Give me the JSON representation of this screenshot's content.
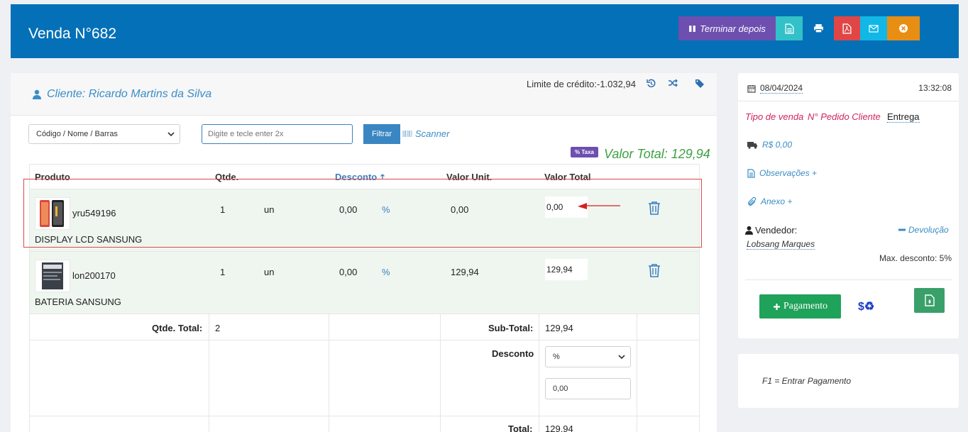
{
  "header": {
    "title": "Venda N°682",
    "buttons": {
      "terminar_label": "Terminar depois"
    }
  },
  "cliente": {
    "label": "Cliente: Ricardo Martins da Silva",
    "limite": "Limite de crédito:-1.032,94"
  },
  "filters": {
    "select_value": "Código / Nome / Barras",
    "search_placeholder": "Digite e tecle enter 2x",
    "filter_label": "Filtrar",
    "scanner_label": "Scanner"
  },
  "summary": {
    "taxa_label": "% Taxa",
    "valor_total": "Valor Total: 129,94"
  },
  "table": {
    "headers": {
      "produto": "Produto",
      "qtde": "Qtde.",
      "desconto": "Desconto",
      "valor_unit": "Valor Unit.",
      "valor_total": "Valor Total"
    },
    "rows": [
      {
        "code": "yru549196",
        "desc": "DISPLAY LCD SANSUNG",
        "qtd": "1",
        "un": "un",
        "desconto": "0,00",
        "pct": "%",
        "unit": "0,00",
        "total": "0,00"
      },
      {
        "code": "lon200170",
        "desc": "BATERIA SANSUNG",
        "qtd": "1",
        "un": "un",
        "desconto": "0,00",
        "pct": "%",
        "unit": "129,94",
        "total": "129,94"
      }
    ],
    "footer": {
      "qtde_total_label": "Qtde. Total:",
      "qtde_total": "2",
      "subtotal_label": "Sub-Total:",
      "subtotal": "129,94",
      "desconto_label": "Desconto",
      "desconto_type": "%",
      "desconto_value": "0,00",
      "total_label": "Total:",
      "total": "129,94"
    }
  },
  "side": {
    "date": "08/04/2024",
    "time": "13:32:08",
    "tipo_venda": "Tipo de venda",
    "pedido_cliente": "N° Pedido Cliente",
    "entrega": "Entrega",
    "frete": "R$ 0,00",
    "observacoes": "Observações +",
    "anexo": "Anexo +",
    "vendedor_label": "Vendedor:",
    "devolucao": "Devolução",
    "vendedor_name": "Lobsang Marques",
    "max_desconto": "Max. desconto: 5%",
    "pagamento_label": "Pagamento",
    "recycle_label": "$♻",
    "f1_hint": "F1 = Entrar Pagamento"
  },
  "colors": {
    "header_bg": "#0470b7",
    "purple": "#6d4fb0",
    "teal": "#33c1c8",
    "red": "#e04646",
    "cyan": "#11b7e6",
    "orange": "#e88e13",
    "green_total": "#3fa043",
    "pink_link": "#d0245d"
  }
}
